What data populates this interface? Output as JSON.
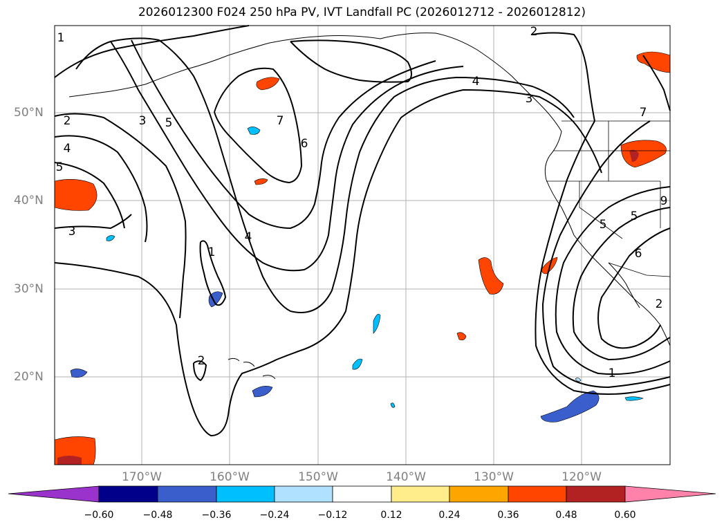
{
  "title": "2026012300 F024 250 hPa PV, IVT Landfall PC (2026012712 - 2026012812)",
  "map": {
    "lon_labels": [
      "170°W",
      "160°W",
      "150°W",
      "140°W",
      "130°W",
      "120°W"
    ],
    "lat_labels": [
      "50°N",
      "40°N",
      "30°N",
      "20°N"
    ],
    "contour_labels": [
      "1",
      "2",
      "3",
      "5",
      "4",
      "5",
      "3",
      "1",
      "2",
      "4",
      "7",
      "6",
      "2",
      "3",
      "4",
      "5",
      "7",
      "5",
      "9",
      "6",
      "1",
      "2"
    ]
  },
  "colorbar": {
    "colors": [
      "#9933cc",
      "#00008b",
      "#3a5fcd",
      "#00bfff",
      "#b0e2ff",
      "#ffffff",
      "#ffec8b",
      "#ffa500",
      "#ff4500",
      "#b22222",
      "#ff82ab"
    ],
    "ticks": [
      "−0.60",
      "−0.48",
      "−0.36",
      "−0.24",
      "−0.12",
      "0.12",
      "0.24",
      "0.36",
      "0.48",
      "0.60"
    ]
  }
}
